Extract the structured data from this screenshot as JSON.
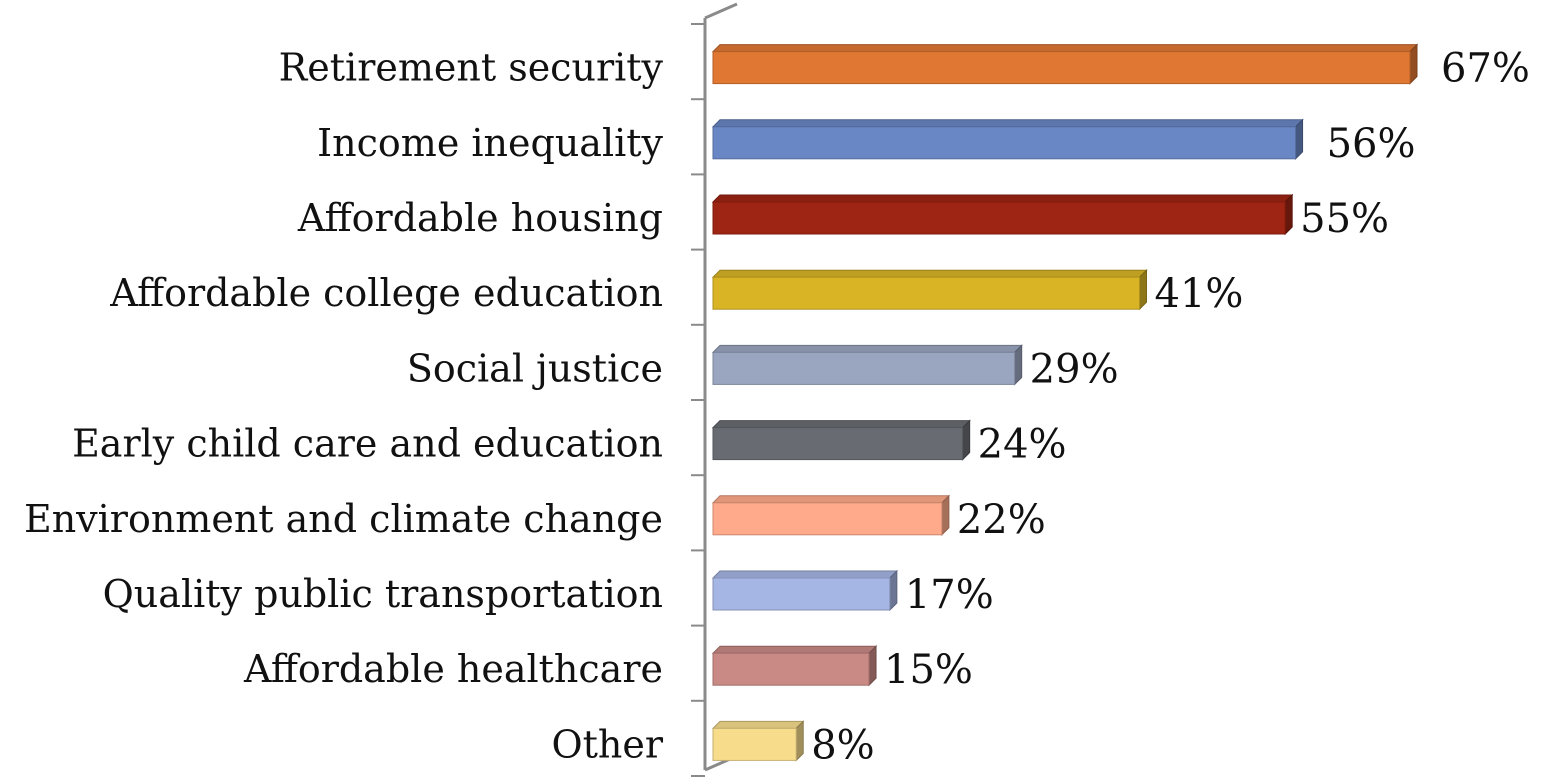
{
  "chart_data": {
    "type": "bar",
    "orientation": "horizontal",
    "style": "3d",
    "categories": [
      "Retirement security",
      "Income inequality",
      "Affordable housing",
      "Affordable college education",
      "Social justice",
      "Early child care and education",
      "Environment and climate change",
      "Quality public transportation",
      "Affordable healthcare",
      "Other"
    ],
    "values": [
      67,
      56,
      55,
      41,
      29,
      24,
      22,
      17,
      15,
      8
    ],
    "value_labels": [
      "67%",
      "56%",
      "55%",
      "41%",
      "29%",
      "24%",
      "22%",
      "17%",
      "15%",
      "8%"
    ],
    "colors": [
      "#E07733",
      "#6A87C5",
      "#9E2413",
      "#D9B526",
      "#9AA6C0",
      "#686C72",
      "#FFAA8A",
      "#A6B6E4",
      "#C98A85",
      "#F7DC8C"
    ],
    "title": "",
    "xlabel": "",
    "ylabel": "",
    "xlim": [
      0,
      67
    ],
    "grid": false,
    "legend": "none"
  }
}
